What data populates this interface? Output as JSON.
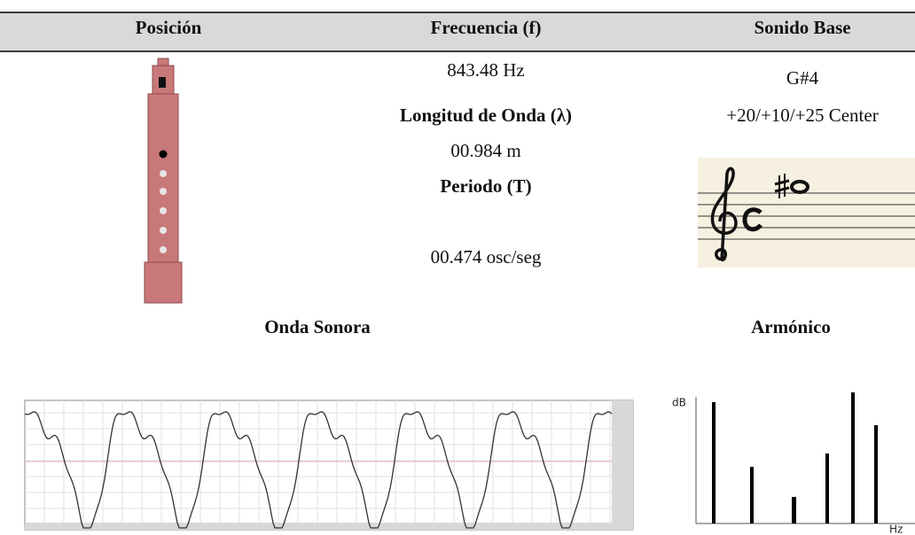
{
  "header": {
    "columns": [
      "Posición",
      "Frecuencia (f)",
      "Sonido Base"
    ]
  },
  "frequency": {
    "value": "843.48 Hz",
    "wavelength_label": "Longitud de Onda (λ)",
    "wavelength": "00.984 m",
    "period_label": "Periodo (T)",
    "period": "00.474 osc/seg"
  },
  "sound": {
    "note": "G#4",
    "tuning": "+20/+10/+25 Center"
  },
  "sections": {
    "wave": "Onda Sonora",
    "harmonic": "Armónico"
  },
  "harmonic_axes": {
    "y": "dB",
    "x": "Hz"
  }
}
